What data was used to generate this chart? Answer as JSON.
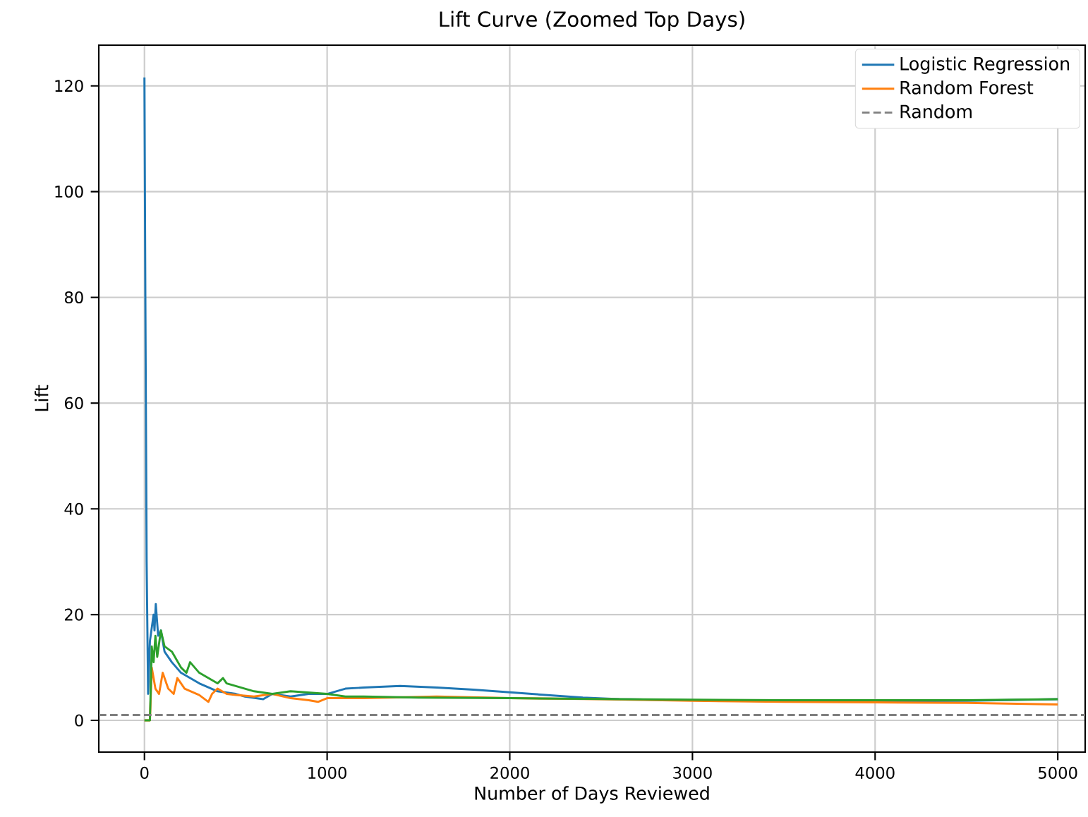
{
  "chart_data": {
    "type": "line",
    "title": "Lift Curve (Zoomed Top Days)",
    "xlabel": "Number of Days Reviewed",
    "ylabel": "Lift",
    "xlim": [
      -250,
      5150
    ],
    "ylim": [
      -6,
      127.7
    ],
    "xticks": [
      0,
      1000,
      2000,
      3000,
      4000,
      5000
    ],
    "yticks": [
      0,
      20,
      40,
      60,
      80,
      100,
      120
    ],
    "grid": true,
    "legend": "top right",
    "line_style": "solid",
    "series": [
      {
        "name": "Logistic Regression",
        "color": "#1f77b4",
        "x": [
          0,
          5,
          12,
          20,
          30,
          50,
          55,
          62,
          75,
          90,
          110,
          150,
          200,
          250,
          300,
          400,
          500,
          550,
          650,
          700,
          800,
          900,
          1000,
          1050,
          1100,
          1200,
          1400,
          1600,
          1800,
          2000,
          2200,
          2400,
          2600,
          3000,
          3500,
          4000,
          4500,
          5000
        ],
        "values": [
          121.6,
          80,
          30,
          5,
          15,
          20,
          17,
          22,
          16,
          17,
          13,
          11,
          9,
          8,
          7,
          5.5,
          5,
          4.5,
          4,
          5,
          4.5,
          5,
          5,
          5.5,
          6,
          6.2,
          6.5,
          6.2,
          5.8,
          5.3,
          4.8,
          4.3,
          4,
          3.8,
          3.6,
          3.6,
          3.7,
          4
        ]
      },
      {
        "name": "Random Forest",
        "color": "#ff7f0e",
        "x": [
          0,
          30,
          40,
          50,
          60,
          80,
          100,
          130,
          160,
          180,
          220,
          300,
          350,
          370,
          400,
          450,
          500,
          600,
          700,
          800,
          900,
          950,
          1000,
          1200,
          1600,
          2000,
          2500,
          3000,
          3500,
          4000,
          4500,
          5000
        ],
        "values": [
          0,
          0,
          10,
          8,
          6,
          5,
          9,
          6,
          5,
          8,
          6,
          4.8,
          3.5,
          5,
          6,
          5,
          4.8,
          4.5,
          5,
          4.2,
          3.8,
          3.5,
          4.2,
          4.2,
          4.5,
          4.2,
          4,
          3.7,
          3.5,
          3.4,
          3.3,
          3
        ]
      },
      {
        "color": "#2ca02c",
        "x": [
          0,
          30,
          40,
          50,
          60,
          70,
          90,
          110,
          150,
          200,
          230,
          250,
          300,
          350,
          400,
          430,
          450,
          500,
          600,
          700,
          800,
          1000,
          1100,
          1200,
          1500,
          2000,
          2300,
          2600,
          3000,
          3500,
          4000,
          4500,
          5000
        ],
        "values": [
          0,
          0,
          14,
          11,
          16,
          12,
          17,
          14,
          13,
          10,
          9,
          11,
          9,
          8,
          7,
          8,
          7,
          6.5,
          5.5,
          5,
          5.5,
          5,
          4.5,
          4.5,
          4.3,
          4.2,
          4.1,
          4,
          3.9,
          3.8,
          3.8,
          3.8,
          4
        ]
      }
    ],
    "ref_lines": [
      {
        "axis": "y",
        "value": 1,
        "label": "Random",
        "color": "#7f7f7f",
        "line_style": "dashed"
      }
    ]
  }
}
